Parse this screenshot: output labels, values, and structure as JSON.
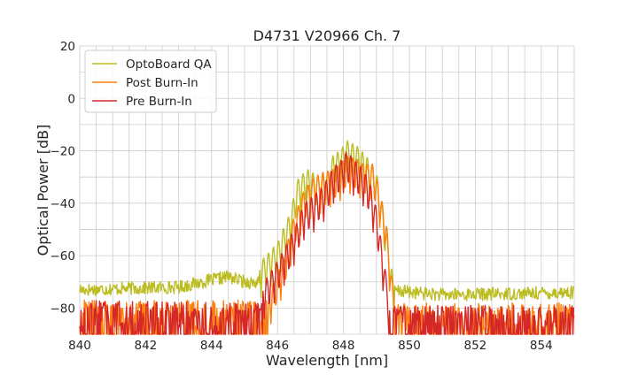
{
  "chart_data": {
    "type": "line",
    "title": "D4731 V20966 Ch. 7",
    "xlabel": "Wavelength [nm]",
    "ylabel": "Optical Power [dB]",
    "xlim": [
      840,
      855
    ],
    "ylim": [
      -90,
      20
    ],
    "xticks": [
      840,
      842,
      844,
      846,
      848,
      850,
      852,
      854
    ],
    "yticks": [
      20,
      0,
      -20,
      -40,
      -60,
      -80
    ],
    "xtick_labels": [
      "840",
      "842",
      "844",
      "846",
      "848",
      "850",
      "852",
      "854"
    ],
    "ytick_labels": [
      "20",
      "0",
      "−20",
      "−40",
      "−60",
      "−80"
    ],
    "grid": true,
    "legend_position": "top-left",
    "series": [
      {
        "name": "OptoBoard QA",
        "color": "#bcbd22",
        "noise_floor": [
          [
            840.0,
            -73
          ],
          [
            843.0,
            -72
          ],
          [
            844.5,
            -68
          ],
          [
            845.0,
            -70
          ],
          [
            849.2,
            -73
          ],
          [
            851.0,
            -75
          ],
          [
            855.0,
            -74
          ]
        ],
        "peaks": [
          [
            845.5,
            -62
          ],
          [
            846.0,
            -55
          ],
          [
            846.4,
            -43
          ],
          [
            846.6,
            -31
          ],
          [
            846.9,
            -27
          ],
          [
            847.3,
            -30
          ],
          [
            847.5,
            -29
          ],
          [
            847.7,
            -21
          ],
          [
            847.9,
            -20
          ],
          [
            848.1,
            -16
          ],
          [
            848.4,
            -18
          ],
          [
            848.7,
            -22
          ],
          [
            849.0,
            -28
          ],
          [
            849.3,
            -50
          ],
          [
            849.5,
            -68
          ]
        ]
      },
      {
        "name": "Post Burn-In",
        "color": "#ff7f0e",
        "noise_floor": [
          [
            840.0,
            -79
          ],
          [
            845.0,
            -79
          ],
          [
            849.4,
            -80
          ],
          [
            855.0,
            -80
          ]
        ],
        "peaks": [
          [
            845.8,
            -72
          ],
          [
            846.2,
            -60
          ],
          [
            846.5,
            -45
          ],
          [
            846.8,
            -35
          ],
          [
            847.1,
            -30
          ],
          [
            847.4,
            -28
          ],
          [
            847.7,
            -27
          ],
          [
            847.9,
            -25
          ],
          [
            848.1,
            -22
          ],
          [
            848.4,
            -23
          ],
          [
            848.6,
            -25
          ],
          [
            848.9,
            -25
          ],
          [
            849.1,
            -35
          ],
          [
            849.3,
            -47
          ],
          [
            849.5,
            -72
          ]
        ]
      },
      {
        "name": "Pre Burn-In",
        "color": "#d62728",
        "noise_floor": [
          [
            840.0,
            -79
          ],
          [
            845.0,
            -80
          ],
          [
            849.3,
            -81
          ],
          [
            855.0,
            -81
          ]
        ],
        "peaks": [
          [
            845.6,
            -70
          ],
          [
            846.0,
            -62
          ],
          [
            846.3,
            -55
          ],
          [
            846.6,
            -47
          ],
          [
            846.8,
            -40
          ],
          [
            847.1,
            -37
          ],
          [
            847.4,
            -33
          ],
          [
            847.7,
            -26
          ],
          [
            847.9,
            -24
          ],
          [
            848.1,
            -20
          ],
          [
            848.3,
            -23
          ],
          [
            848.6,
            -27
          ],
          [
            848.8,
            -32
          ],
          [
            849.0,
            -42
          ],
          [
            849.3,
            -68
          ]
        ]
      }
    ]
  }
}
